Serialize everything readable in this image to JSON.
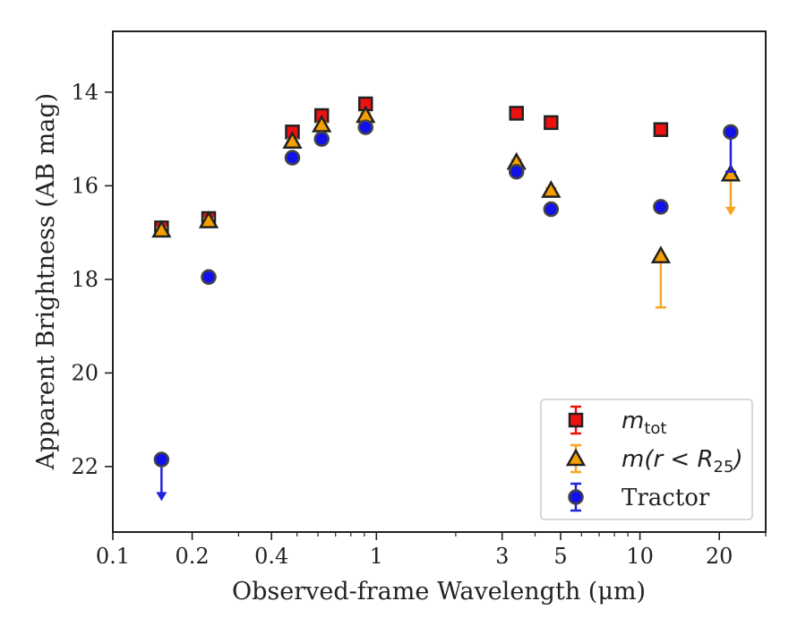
{
  "chart_data": {
    "type": "scatter",
    "title": "",
    "xlabel": "Observed-frame Wavelength (μm)",
    "ylabel": "Apparent Brightness (AB mag)",
    "xscale": "log",
    "xlim": [
      0.1,
      30
    ],
    "ylim": [
      23.4,
      12.7
    ],
    "y_inverted": true,
    "grid": false,
    "legend_position": "lower-right",
    "xticks": [
      {
        "value": 0.1,
        "label": "0.1"
      },
      {
        "value": 0.2,
        "label": "0.2"
      },
      {
        "value": 0.4,
        "label": "0.4"
      },
      {
        "value": 1,
        "label": "1"
      },
      {
        "value": 3,
        "label": "3"
      },
      {
        "value": 5,
        "label": "5"
      },
      {
        "value": 10,
        "label": "10"
      },
      {
        "value": 20,
        "label": "20"
      }
    ],
    "yticks": [
      {
        "value": 14,
        "label": "14"
      },
      {
        "value": 16,
        "label": "16"
      },
      {
        "value": 18,
        "label": "18"
      },
      {
        "value": 20,
        "label": "20"
      },
      {
        "value": 22,
        "label": "22"
      }
    ],
    "series": [
      {
        "key": "mtot",
        "legend_base": "m",
        "legend_sub": "tot",
        "marker": "square",
        "color": "#ee1111",
        "edge_color": "#222222",
        "err_color": "#ee1111",
        "points": [
          {
            "x": 0.153,
            "y": 16.9,
            "err": 0.1
          },
          {
            "x": 0.231,
            "y": 16.7,
            "err": 0.1
          },
          {
            "x": 0.48,
            "y": 14.85,
            "err": 0.08
          },
          {
            "x": 0.62,
            "y": 14.5,
            "err": 0.08
          },
          {
            "x": 0.91,
            "y": 14.25,
            "err": 0.08
          },
          {
            "x": 3.4,
            "y": 14.45,
            "err": 0.05
          },
          {
            "x": 4.6,
            "y": 14.65,
            "err": 0.05
          },
          {
            "x": 12.0,
            "y": 14.8,
            "err": 0.05
          }
        ]
      },
      {
        "key": "mr25",
        "legend_base": "m(r < R",
        "legend_sub": "25",
        "legend_end": ")",
        "marker": "triangle",
        "color": "#f5a000",
        "edge_color": "#222222",
        "err_color": "#f5a623",
        "points": [
          {
            "x": 0.153,
            "y": 16.95,
            "err": 0.05
          },
          {
            "x": 0.231,
            "y": 16.75,
            "err": 0.05
          },
          {
            "x": 0.48,
            "y": 15.05,
            "err": 0.05
          },
          {
            "x": 0.62,
            "y": 14.7,
            "err": 0.05
          },
          {
            "x": 0.91,
            "y": 14.5,
            "err": 0.05
          },
          {
            "x": 3.4,
            "y": 15.5,
            "err": 0.05
          },
          {
            "x": 4.6,
            "y": 16.1,
            "err": 0.05
          },
          {
            "x": 12.0,
            "y": 17.5,
            "err_upper": 0.0,
            "err_lower": 1.1
          },
          {
            "x": 22.1,
            "y": 15.75,
            "upper_limit": true,
            "arrow_to": 16.6
          }
        ]
      },
      {
        "key": "tractor",
        "legend_base": "Tractor",
        "marker": "circle",
        "color": "#1111ee",
        "edge_color": "#444444",
        "err_color": "#2222dd",
        "points": [
          {
            "x": 0.153,
            "y": 21.85,
            "upper_limit": true,
            "arrow_to": 22.7
          },
          {
            "x": 0.231,
            "y": 17.95,
            "err": 0.05
          },
          {
            "x": 0.48,
            "y": 15.4,
            "err": 0.05
          },
          {
            "x": 0.62,
            "y": 15.0,
            "err": 0.05
          },
          {
            "x": 0.91,
            "y": 14.75,
            "err": 0.05
          },
          {
            "x": 3.4,
            "y": 15.7,
            "err": 0.05
          },
          {
            "x": 4.6,
            "y": 16.5,
            "err": 0.05
          },
          {
            "x": 12.0,
            "y": 16.45,
            "err": 0.05
          },
          {
            "x": 22.1,
            "y": 14.85,
            "err_upper": 0.0,
            "err_lower": 0.85
          }
        ]
      }
    ]
  }
}
